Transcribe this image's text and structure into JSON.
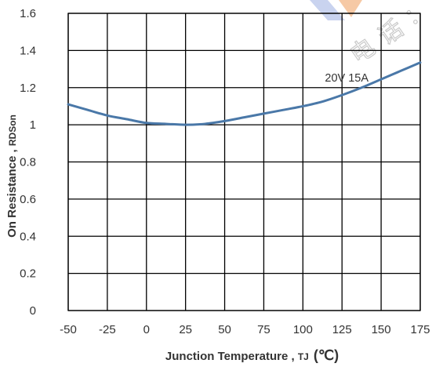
{
  "chart_data": {
    "type": "line",
    "xlabel": "Junction Temperature , T J (℃)",
    "xlabel_parts": {
      "main": "Junction Temperature , ",
      "symbol": "TJ",
      "unit": "(℃)"
    },
    "ylabel_parts": {
      "main": "On Resistance , ",
      "symbol": "RDSon"
    },
    "x_ticks": [
      "-50",
      "-25",
      "0",
      "25",
      "50",
      "75",
      "100",
      "125",
      "150",
      "175"
    ],
    "y_ticks": [
      "0",
      "0.2",
      "0.4",
      "0.6",
      "0.8",
      "1",
      "1.2",
      "1.4",
      "1.6"
    ],
    "xlim": [
      -50,
      175
    ],
    "ylim": [
      0,
      1.6
    ],
    "grid": true,
    "annotation": "20V 15A",
    "annotation_at": {
      "x": 128,
      "y": 1.25
    },
    "series": [
      {
        "color": "#4a78a8",
        "points": [
          [
            -50,
            1.11
          ],
          [
            -37.5,
            1.08
          ],
          [
            -25,
            1.05
          ],
          [
            -12.5,
            1.03
          ],
          [
            0,
            1.01
          ],
          [
            12.5,
            1.005
          ],
          [
            25,
            1.0
          ],
          [
            37.5,
            1.005
          ],
          [
            50,
            1.02
          ],
          [
            62.5,
            1.04
          ],
          [
            75,
            1.06
          ],
          [
            87.5,
            1.08
          ],
          [
            100,
            1.1
          ],
          [
            112.5,
            1.125
          ],
          [
            125,
            1.16
          ],
          [
            137.5,
            1.2
          ],
          [
            150,
            1.245
          ],
          [
            162.5,
            1.29
          ],
          [
            175,
            1.335
          ]
        ]
      }
    ]
  }
}
